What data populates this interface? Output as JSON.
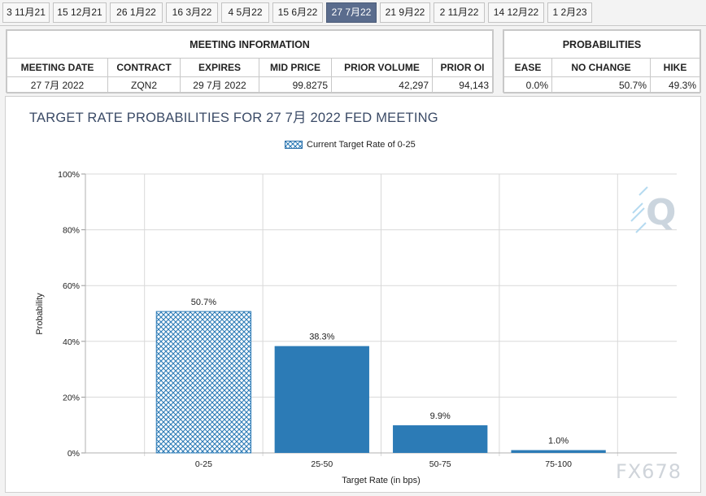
{
  "tabs": [
    {
      "label": "3 11月21",
      "active": false
    },
    {
      "label": "15 12月21",
      "active": false
    },
    {
      "label": "26 1月22",
      "active": false
    },
    {
      "label": "16 3月22",
      "active": false
    },
    {
      "label": "4 5月22",
      "active": false
    },
    {
      "label": "15 6月22",
      "active": false
    },
    {
      "label": "27 7月22",
      "active": true
    },
    {
      "label": "21 9月22",
      "active": false
    },
    {
      "label": "2 11月22",
      "active": false
    },
    {
      "label": "14 12月22",
      "active": false
    },
    {
      "label": "1 2月23",
      "active": false
    }
  ],
  "meeting": {
    "title": "MEETING INFORMATION",
    "headers": [
      "MEETING DATE",
      "CONTRACT",
      "EXPIRES",
      "MID PRICE",
      "PRIOR VOLUME",
      "PRIOR OI"
    ],
    "values": [
      "27 7月 2022",
      "ZQN2",
      "29 7月 2022",
      "99.8275",
      "42,297",
      "94,143"
    ]
  },
  "probabilities": {
    "title": "PROBABILITIES",
    "headers": [
      "EASE",
      "NO CHANGE",
      "HIKE"
    ],
    "values": [
      "0.0%",
      "50.7%",
      "49.3%"
    ]
  },
  "chart_data": {
    "type": "bar",
    "title": "TARGET RATE PROBABILITIES FOR 27 7月 2022 FED MEETING",
    "legend": "Current Target Rate of 0-25",
    "xlabel": "Target Rate (in bps)",
    "ylabel": "Probability",
    "categories": [
      "0-25",
      "25-50",
      "50-75",
      "75-100"
    ],
    "values": [
      50.7,
      38.3,
      9.9,
      1.0
    ],
    "value_labels": [
      "50.7%",
      "38.3%",
      "9.9%",
      "1.0%"
    ],
    "highlight_index": 0,
    "ylim": [
      0,
      100
    ],
    "yticks": [
      "0%",
      "20%",
      "40%",
      "60%",
      "80%",
      "100%"
    ],
    "grid": true,
    "colors": {
      "bar": "#2c7bb6",
      "highlight_hatch": "#2c7bb6",
      "title": "#3a4a66"
    }
  },
  "watermark": "FX678"
}
